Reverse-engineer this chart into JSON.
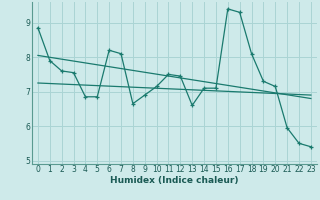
{
  "xlabel": "Humidex (Indice chaleur)",
  "background_color": "#ceeaea",
  "grid_color": "#aad4d4",
  "line_color": "#1a7a6e",
  "xlim": [
    -0.5,
    23.5
  ],
  "ylim": [
    4.9,
    9.6
  ],
  "yticks": [
    5,
    6,
    7,
    8,
    9
  ],
  "xticks": [
    0,
    1,
    2,
    3,
    4,
    5,
    6,
    7,
    8,
    9,
    10,
    11,
    12,
    13,
    14,
    15,
    16,
    17,
    18,
    19,
    20,
    21,
    22,
    23
  ],
  "series1": [
    8.85,
    7.9,
    7.6,
    7.55,
    6.85,
    6.85,
    8.2,
    8.1,
    6.65,
    6.9,
    7.15,
    7.5,
    7.45,
    6.6,
    7.1,
    7.1,
    9.4,
    9.3,
    8.1,
    7.3,
    7.15,
    5.95,
    5.5,
    5.4
  ],
  "trend1_x": [
    0,
    23
  ],
  "trend1_y": [
    8.05,
    6.8
  ],
  "trend2_x": [
    0,
    23
  ],
  "trend2_y": [
    7.25,
    6.9
  ]
}
